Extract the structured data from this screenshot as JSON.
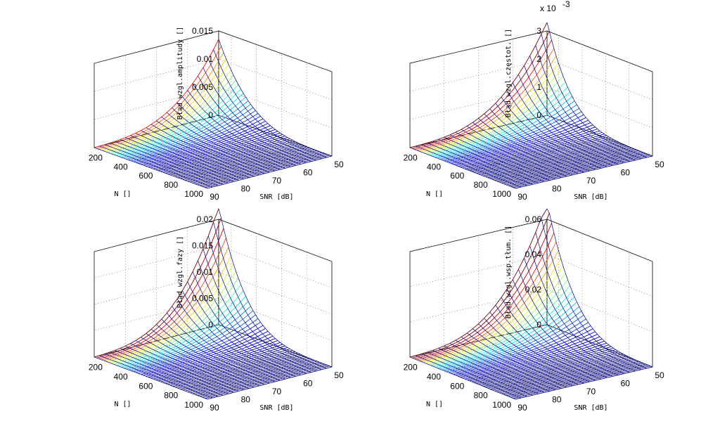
{
  "figure": {
    "background": "#ffffff",
    "colormap": [
      "#00008f",
      "#0000ff",
      "#00ffff",
      "#ffff00",
      "#ff0000",
      "#800000"
    ]
  },
  "chart_data": [
    {
      "type": "surface",
      "zlabel": "Błąd wzgl.amplitudy []",
      "xlabel": "N []",
      "ylabel": "SNR [dB]",
      "x_ticks": [
        "200",
        "400",
        "600",
        "800",
        "1000"
      ],
      "y_ticks": [
        "90",
        "80",
        "70",
        "60",
        "50"
      ],
      "z_ticks": [
        "0",
        "0.005",
        "0.01",
        "0.015"
      ],
      "z_multiplier": "",
      "xlim": [
        100,
        1000
      ],
      "ylim": [
        50,
        90
      ],
      "zlim": [
        0,
        0.015
      ],
      "peak": 0.013,
      "sharpness": 1.25,
      "grid": true
    },
    {
      "type": "surface",
      "zlabel": "Błąd wzgl.częstot. []",
      "xlabel": "N []",
      "ylabel": "SNR [dB]",
      "x_ticks": [
        "200",
        "400",
        "600",
        "800",
        "1000"
      ],
      "y_ticks": [
        "90",
        "80",
        "70",
        "60",
        "50"
      ],
      "z_ticks": [
        "0",
        "1",
        "2",
        "3"
      ],
      "z_multiplier": "x 10",
      "z_exponent": "-3",
      "xlim": [
        100,
        1000
      ],
      "ylim": [
        50,
        90
      ],
      "zlim": [
        0,
        3
      ],
      "peak": 3.2,
      "sharpness": 1.5,
      "grid": true
    },
    {
      "type": "surface",
      "zlabel": "Błąd wzgl.fazy []",
      "xlabel": "N []",
      "ylabel": "SNR [dB]",
      "x_ticks": [
        "200",
        "400",
        "600",
        "800",
        "1000"
      ],
      "y_ticks": [
        "90",
        "80",
        "70",
        "60",
        "50"
      ],
      "z_ticks": [
        "0",
        "0.005",
        "0.01",
        "0.015",
        "0.02"
      ],
      "z_multiplier": "",
      "xlim": [
        100,
        1000
      ],
      "ylim": [
        50,
        90
      ],
      "zlim": [
        0,
        0.02
      ],
      "peak": 0.0215,
      "sharpness": 1.4,
      "grid": true
    },
    {
      "type": "surface",
      "zlabel": "Błąd wzgl.wsp.tłum. []",
      "xlabel": "N []",
      "ylabel": "SNR [dB]",
      "x_ticks": [
        "200",
        "400",
        "600",
        "800",
        "1000"
      ],
      "y_ticks": [
        "90",
        "80",
        "70",
        "60",
        "50"
      ],
      "z_ticks": [
        "0",
        "0.02",
        "0.04",
        "0.06"
      ],
      "z_multiplier": "",
      "xlim": [
        100,
        1000
      ],
      "ylim": [
        50,
        90
      ],
      "zlim": [
        0,
        0.06
      ],
      "peak": 0.067,
      "sharpness": 1.3,
      "grid": true
    }
  ]
}
